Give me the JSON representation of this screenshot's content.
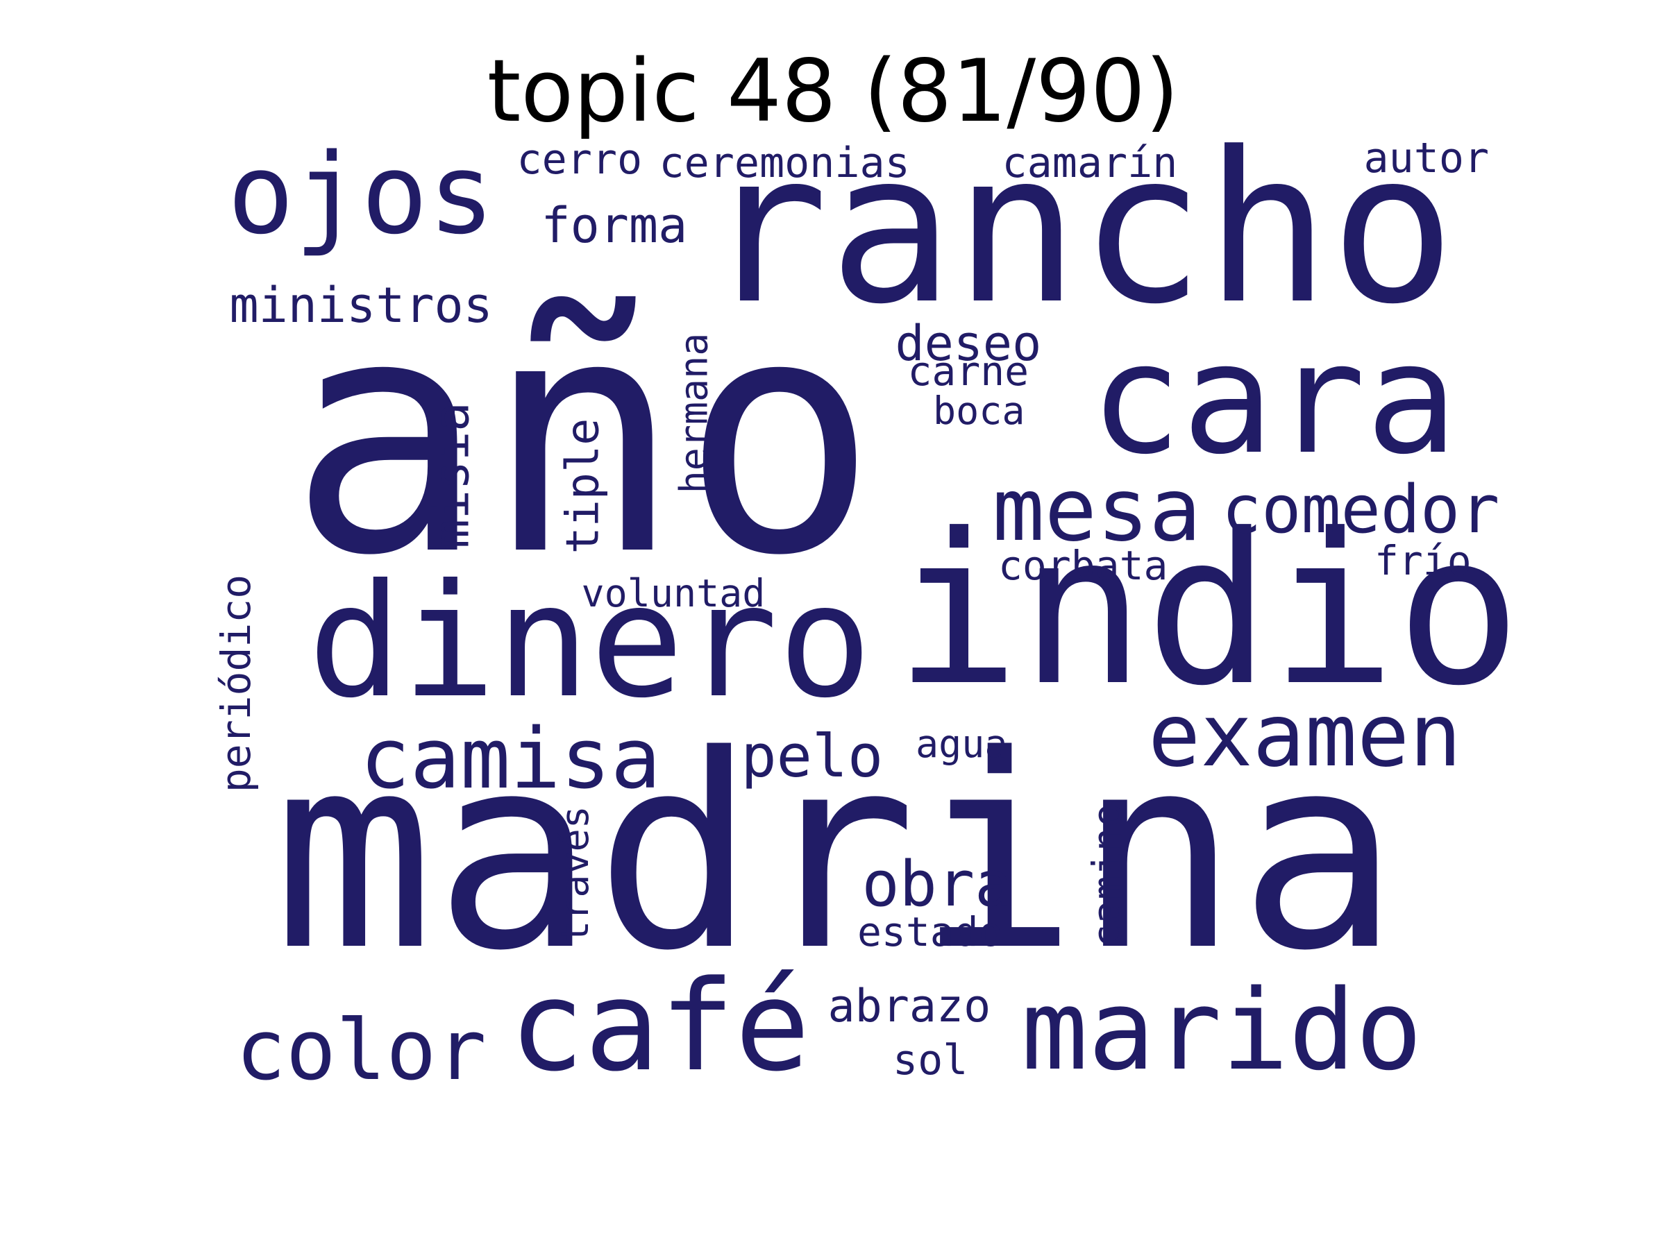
{
  "title": "topic 48 (81/90)",
  "word_color": "#211C66",
  "title_color": "#000000",
  "words": [
    {
      "text": "madrina"
    },
    {
      "text": "año"
    },
    {
      "text": "rancho"
    },
    {
      "text": "indio"
    },
    {
      "text": "dinero"
    },
    {
      "text": "cara"
    },
    {
      "text": "café"
    },
    {
      "text": "marido"
    },
    {
      "text": "ojos"
    },
    {
      "text": "examen"
    },
    {
      "text": "mesa"
    },
    {
      "text": "camisa"
    },
    {
      "text": "color"
    },
    {
      "text": "comedor"
    },
    {
      "text": "obra"
    },
    {
      "text": "pelo"
    },
    {
      "text": "forma"
    },
    {
      "text": "ministros"
    },
    {
      "text": "deseo"
    },
    {
      "text": "abrazo"
    },
    {
      "text": "ceremonias"
    },
    {
      "text": "camarín"
    },
    {
      "text": "cerro"
    },
    {
      "text": "autor"
    },
    {
      "text": "carne"
    },
    {
      "text": "boca"
    },
    {
      "text": "misia"
    },
    {
      "text": "tiple"
    },
    {
      "text": "hermana"
    },
    {
      "text": "corbata"
    },
    {
      "text": "frío"
    },
    {
      "text": "voluntad"
    },
    {
      "text": "periódico"
    },
    {
      "text": "agua"
    },
    {
      "text": "estado"
    },
    {
      "text": "sol"
    },
    {
      "text": "través"
    },
    {
      "text": "camino"
    }
  ]
}
